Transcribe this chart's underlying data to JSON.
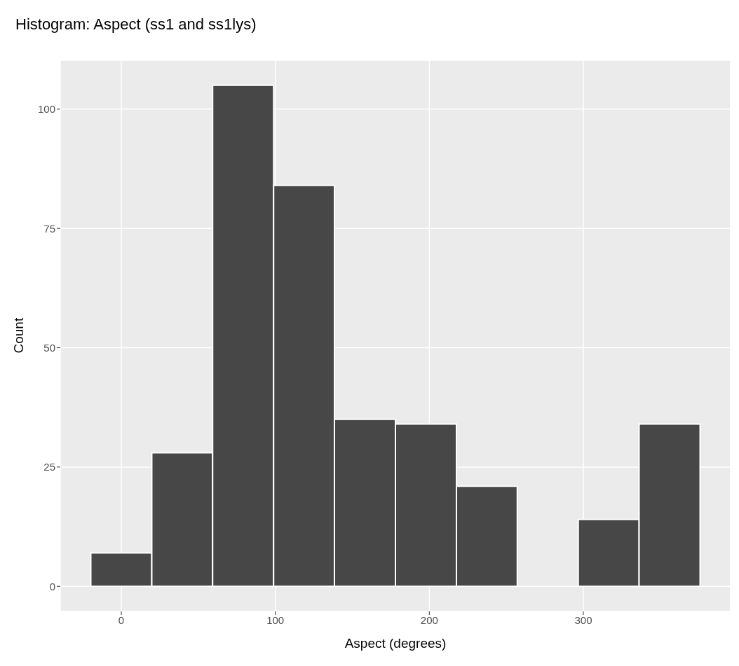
{
  "chart_data": {
    "type": "histogram",
    "title": "Histogram: Aspect (ss1 and ss1lys)",
    "xlabel": "Aspect (degrees)",
    "ylabel": "Count",
    "bins": [
      -19.8,
      19.8,
      59.3,
      98.9,
      138.4,
      178,
      217.6,
      257.1,
      296.7,
      336.2,
      375.8
    ],
    "values": [
      7,
      28,
      105,
      84,
      35,
      34,
      21,
      0,
      14,
      34
    ],
    "color": "#474747",
    "xlim": [
      -39.6,
      395.6
    ],
    "xticks": [
      0,
      100,
      200,
      300
    ],
    "ylim": [
      -5.25,
      110.25
    ],
    "yticks": [
      0,
      25,
      50,
      75,
      100
    ],
    "grid": true
  }
}
